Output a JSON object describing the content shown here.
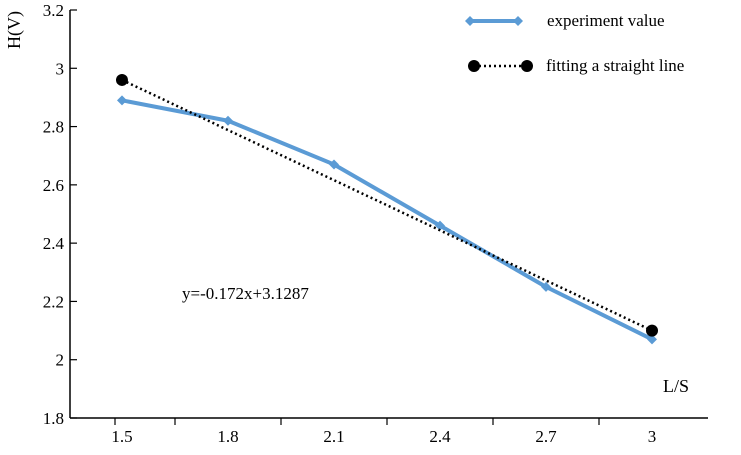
{
  "chart_data": {
    "type": "line",
    "xlabel": "L/S",
    "ylabel": "H(V)",
    "xlim": [
      1.5,
      3
    ],
    "ylim": [
      1.8,
      3.2
    ],
    "x_ticks": [
      "1.5",
      "1.8",
      "2.1",
      "2.4",
      "2.7",
      "3"
    ],
    "y_ticks": [
      "1.8",
      "2",
      "2.2",
      "2.4",
      "2.6",
      "2.8",
      "3",
      "3.2"
    ],
    "series": [
      {
        "name": "experiment value",
        "color": "#5b9bd5",
        "marker": "diamond",
        "line_style": "solid",
        "x": [
          1.5,
          1.8,
          2.1,
          2.4,
          2.7,
          3.0
        ],
        "y": [
          2.89,
          2.82,
          2.67,
          2.46,
          2.25,
          2.07
        ]
      },
      {
        "name": "fitting a straight line",
        "color": "#000000",
        "marker": "circle",
        "line_style": "dotted",
        "x": [
          1.5,
          3.0
        ],
        "y": [
          2.96,
          2.1
        ]
      }
    ],
    "annotations": [
      "y=-0.172x+3.1287"
    ],
    "legend_position": "top-right",
    "grid": false
  }
}
